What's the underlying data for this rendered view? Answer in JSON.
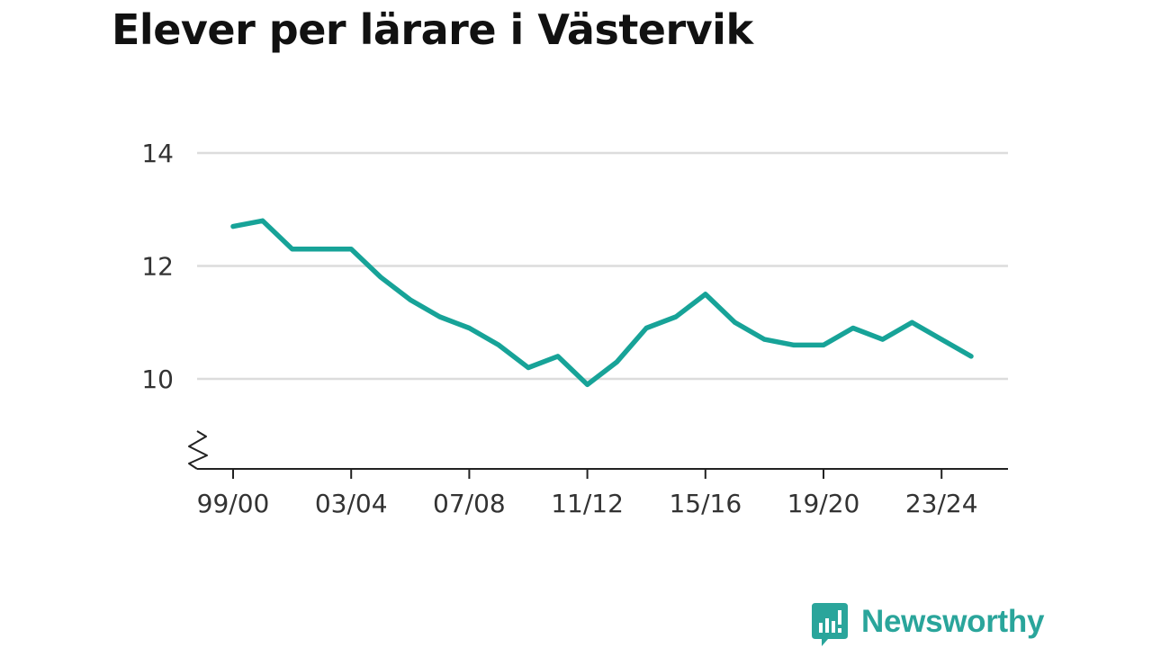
{
  "title": "Elever per lärare i Västervik",
  "brand": {
    "name": "Newsworthy",
    "color": "#2aa59b",
    "icon": "bar-chart-speech-bubble-icon"
  },
  "chart_data": {
    "type": "line",
    "title": "Elever per lärare i Västervik",
    "xlabel": "",
    "ylabel": "",
    "x": [
      "99/00",
      "00/01",
      "01/02",
      "02/03",
      "03/04",
      "04/05",
      "05/06",
      "06/07",
      "07/08",
      "08/09",
      "09/10",
      "10/11",
      "11/12",
      "12/13",
      "13/14",
      "14/15",
      "15/16",
      "16/17",
      "17/18",
      "18/19",
      "19/20",
      "20/21",
      "21/22",
      "22/23",
      "23/24",
      "24/25"
    ],
    "x_tick_labels": [
      "99/00",
      "03/04",
      "07/08",
      "11/12",
      "15/16",
      "19/20",
      "23/24"
    ],
    "y_ticks": [
      10,
      12,
      14
    ],
    "ylim": [
      8.4,
      14.6
    ],
    "y_axis_break": true,
    "grid": true,
    "legend": "none",
    "line_color": "#17a398",
    "series": [
      {
        "values": [
          12.7,
          12.8,
          12.3,
          12.3,
          12.3,
          11.8,
          11.4,
          11.1,
          10.9,
          10.6,
          10.2,
          10.4,
          9.9,
          10.3,
          10.9,
          11.1,
          11.5,
          11.0,
          10.7,
          10.6,
          10.6,
          10.9,
          10.7,
          11.0,
          10.7,
          10.4
        ]
      }
    ]
  }
}
